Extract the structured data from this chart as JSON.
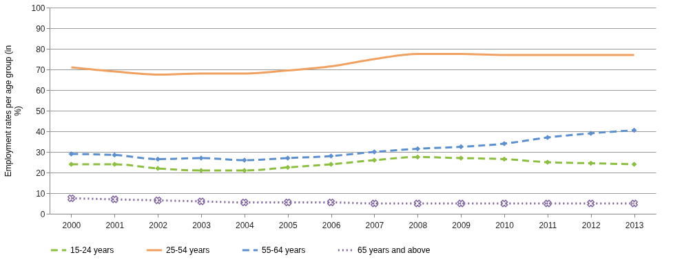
{
  "chart_data": {
    "type": "line",
    "ylabel": "Employment rates per age group (in %)",
    "categories": [
      "2000",
      "2001",
      "2002",
      "2003",
      "2004",
      "2005",
      "2006",
      "2007",
      "2008",
      "2009",
      "2010",
      "2011",
      "2012",
      "2013"
    ],
    "series": [
      {
        "name": "15-24 years",
        "color": "#8cbf3f",
        "line_style": "dashed",
        "marker": "diamond",
        "values": [
          24,
          24,
          22,
          21,
          21,
          22.5,
          24,
          26,
          27.5,
          27,
          26.5,
          25,
          24.5,
          24
        ]
      },
      {
        "name": "25-54 years",
        "color": "#f0a060",
        "line_style": "solid",
        "marker": "none",
        "values": [
          71,
          69,
          67.5,
          68,
          68,
          69.5,
          71.5,
          75,
          77.5,
          77.5,
          77,
          77,
          77,
          77
        ]
      },
      {
        "name": "55-64 years",
        "color": "#5b8fd0",
        "line_style": "dashed",
        "marker": "diamond",
        "values": [
          29,
          28.5,
          26.5,
          27,
          26,
          27,
          28,
          30,
          31.5,
          32.5,
          34,
          37,
          39,
          40.5
        ]
      },
      {
        "name": "65 years and above",
        "color": "#8064a2",
        "line_style": "dotted",
        "marker": "cross",
        "values": [
          7.5,
          7,
          6.5,
          6,
          5.5,
          5.5,
          5.5,
          5,
          5,
          5,
          5,
          5,
          5,
          5
        ]
      }
    ],
    "ylim": [
      0,
      100
    ],
    "yticks": [
      0,
      10,
      20,
      30,
      40,
      50,
      60,
      70,
      80,
      90,
      100
    ],
    "grid": "y",
    "legend": "bottom"
  }
}
